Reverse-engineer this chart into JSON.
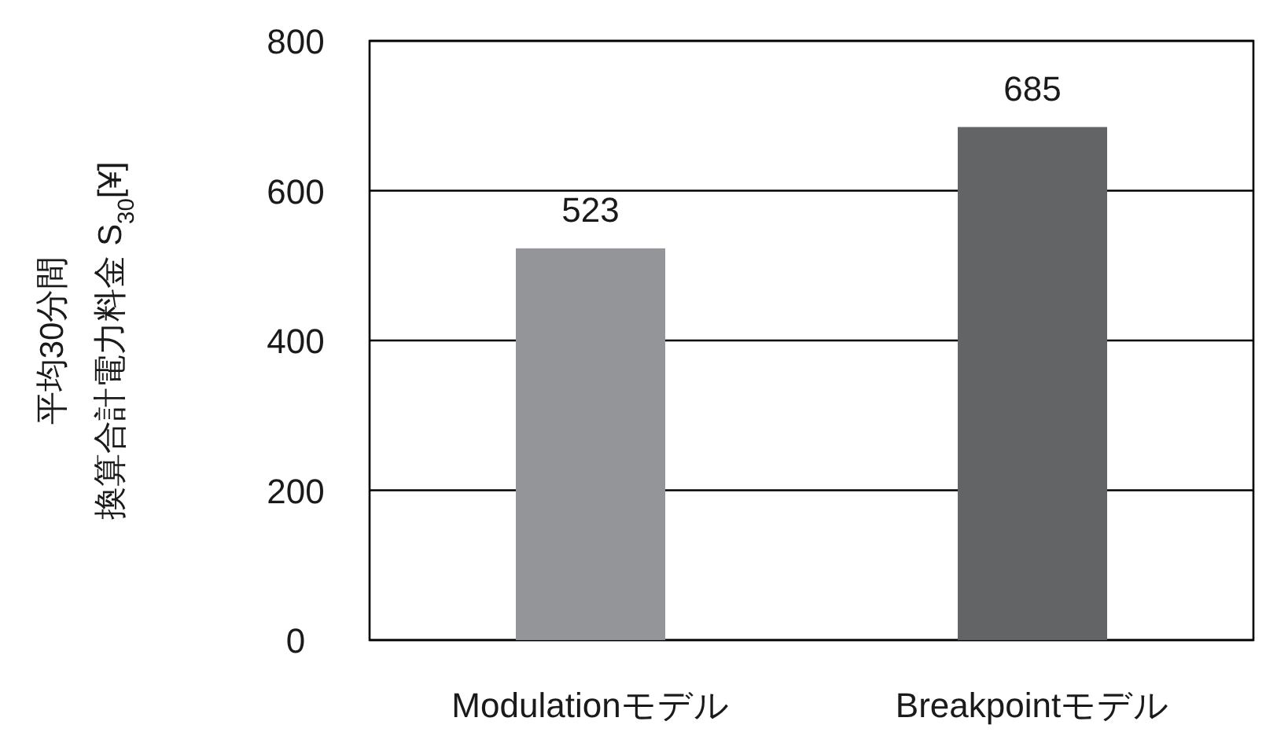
{
  "chart_data": {
    "type": "bar",
    "ylabel": [
      "平均30分間",
      "換算合計電力料金 S$_{30}$[¥]"
    ],
    "categories": [
      "Modulationモデル",
      "Breakpointモデル"
    ],
    "values": [
      523,
      685
    ],
    "colors": [
      "#939598",
      "#636466"
    ],
    "ylim": [
      0,
      800
    ],
    "yticks": [
      0,
      200,
      400,
      600,
      800
    ],
    "grid": "y",
    "data_labels": true
  }
}
